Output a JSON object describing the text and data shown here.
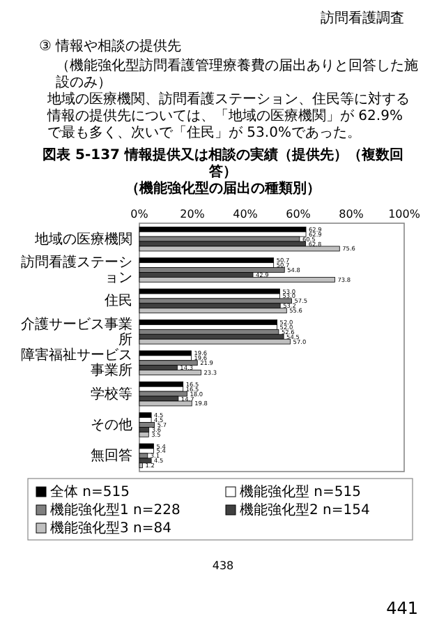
{
  "chart_data": {
    "type": "bar",
    "orientation": "horizontal",
    "title": "図表 5-137 情報提供又は相談の実績（提供先）（複数回答）",
    "subtitle": "（機能強化型の届出の種類別）",
    "annotations": [
      "訪問看護調査",
      "③ 情報や相談の提供先",
      "（機能強化型訪問看護管理療養費の届出ありと回答した施設のみ）",
      "地域の医療機関、訪問看護ステーション、住民等に対する情報の提供先については、「地域の医療機関」が 62.9%で最も多く、次いで「住民」が 53.0%であった。",
      "438",
      "441"
    ],
    "categories": [
      "地域の医療機関",
      "訪問看護ステーション",
      "住民",
      "介護サービス事業所",
      "障害福祉サービス事業所",
      "学校等",
      "その他",
      "無回答"
    ],
    "xlim": [
      0,
      100
    ],
    "xticks": [
      {
        "value": 0,
        "label": "0%"
      },
      {
        "value": 20,
        "label": "20%"
      },
      {
        "value": 40,
        "label": "40%"
      },
      {
        "value": 60,
        "label": "60%"
      },
      {
        "value": 80,
        "label": "80%"
      },
      {
        "value": 100,
        "label": "100%"
      }
    ],
    "legend": "bottom",
    "series": [
      {
        "name": "全体 n=515",
        "color": "#000000",
        "values": [
          62.9,
          50.7,
          53.0,
          52.0,
          19.6,
          16.5,
          4.5,
          5.4
        ],
        "value_labels": [
          "62.9",
          "50.7",
          "53.0",
          "52.0",
          "19.6",
          "16.5",
          "4.5",
          "5.4"
        ]
      },
      {
        "name": "機能強化型 n=515",
        "color": "#ffffff",
        "values": [
          62.9,
          50.7,
          53.0,
          52.0,
          19.6,
          16.5,
          4.5,
          5.4
        ],
        "value_labels": [
          "62.9",
          "50.7",
          "53.0",
          "52.0",
          "19.6",
          "16.5",
          "4.5",
          "5.4"
        ]
      },
      {
        "name": "機能強化型1 n=228",
        "color": "#808080",
        "values": [
          60.5,
          54.8,
          57.5,
          52.6,
          21.9,
          18.0,
          5.7,
          3.1
        ],
        "value_labels": [
          "60.5",
          "54.8",
          "57.5",
          "52.6",
          "21.9",
          "18.0",
          "5.7",
          "3.1"
        ]
      },
      {
        "name": "機能強化型2 n=154",
        "color": "#404040",
        "values": [
          62.8,
          42.9,
          53.2,
          54.5,
          14.3,
          14.7,
          3.6,
          4.5
        ],
        "value_labels": [
          "62.8",
          "42.9",
          "53.2",
          "54.5",
          "14.3",
          "14.7",
          "3.6",
          "4.5"
        ]
      },
      {
        "name": "機能強化型3 n=84",
        "color": "#c0c0c0",
        "values": [
          75.6,
          73.8,
          55.6,
          57.0,
          23.3,
          19.8,
          3.5,
          1.2
        ],
        "value_labels": [
          "75.6",
          "73.8",
          "55.6",
          "57.0",
          "23.3",
          "19.8",
          "3.5",
          "1.2"
        ]
      }
    ]
  }
}
